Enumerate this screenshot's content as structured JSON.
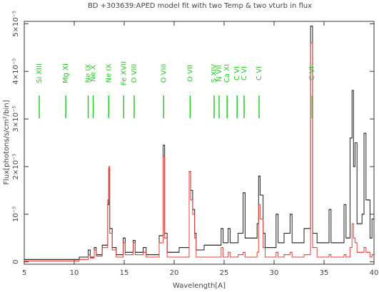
{
  "chart_data": {
    "type": "step",
    "title": "BD +303639:APED model fit with  two Temp & two vturb in flux",
    "x_label": "Wavelength[A]",
    "y_label": "Flux[photons/s/cm²/bin]",
    "xlim": [
      5,
      40
    ],
    "xticks": [
      5,
      10,
      15,
      20,
      25,
      30,
      35,
      40
    ],
    "ylim": [
      -5e-07,
      5.05e-05
    ],
    "yticks": [
      0,
      {
        "value": 1e-05,
        "label": "10⁻⁵"
      },
      {
        "value": 2e-05,
        "label": "2×10⁻⁵"
      },
      {
        "value": 3e-05,
        "label": "3×10⁻⁵"
      },
      {
        "value": 4e-05,
        "label": "4×10⁻⁵"
      },
      {
        "value": 5e-05,
        "label": "5×10⁻⁵"
      }
    ],
    "x": [
      5,
      10.5,
      11.4,
      11.6,
      12.0,
      12.2,
      12.8,
      13.35,
      13.45,
      13.55,
      13.8,
      14.2,
      14.9,
      15.1,
      15.9,
      16.1,
      16.9,
      17.2,
      18.5,
      18.9,
      19.05,
      19.3,
      20.5,
      21.5,
      21.65,
      21.85,
      22.05,
      22.2,
      23,
      24.7,
      24.9,
      25.4,
      25.6,
      26.4,
      26.9,
      27.1,
      28.3,
      28.45,
      28.6,
      28.9,
      29.1,
      30.2,
      30.4,
      31,
      31.6,
      31.8,
      33,
      33.65,
      33.85,
      34.3,
      35.5,
      35.7,
      37,
      37.2,
      37.6,
      37.8,
      37.95,
      38.1,
      38.3,
      38.8,
      39.0,
      39.2,
      39.6,
      39.8
    ],
    "series": [
      {
        "color": "#202020",
        "values": [
          5e-07,
          1e-06,
          2.5e-06,
          1e-06,
          3e-06,
          1.5e-06,
          3.5e-06,
          1.2e-05,
          1.95e-05,
          7e-06,
          3e-06,
          1.5e-06,
          5e-06,
          2e-06,
          4.5e-06,
          2e-06,
          3e-06,
          1.5e-06,
          5.5e-06,
          2.45e-05,
          6e-06,
          2e-06,
          3e-06,
          1.9e-05,
          1.5e-05,
          1.1e-05,
          6e-06,
          2.5e-06,
          3.5e-06,
          7e-06,
          4e-06,
          7e-06,
          4e-06,
          6e-06,
          1.45e-05,
          5e-06,
          8e-06,
          1.8e-05,
          1.4e-05,
          6e-06,
          3e-06,
          1e-05,
          4e-06,
          6e-06,
          1e-05,
          4e-06,
          7e-06,
          4.95e-05,
          6e-06,
          4e-06,
          1.1e-05,
          4e-06,
          1.2e-05,
          5e-06,
          2.6e-05,
          3.6e-05,
          2e-05,
          2.5e-05,
          8e-06,
          1e-05,
          2.7e-05,
          1.3e-05,
          5e-06,
          9e-06
        ]
      },
      {
        "color": "#e8403a",
        "values": [
          2e-07,
          5e-07,
          1.5e-06,
          8e-07,
          2.5e-06,
          1.2e-06,
          3e-06,
          1.3e-05,
          2e-05,
          6e-06,
          2.5e-06,
          1e-06,
          4e-06,
          1.5e-06,
          4e-06,
          1.5e-06,
          2e-06,
          1e-06,
          4e-06,
          2.2e-05,
          5e-06,
          1e-06,
          1e-06,
          1.9e-05,
          1.3e-05,
          1e-05,
          5e-06,
          1e-06,
          1e-06,
          3e-06,
          1e-06,
          2e-06,
          1e-06,
          1.5e-06,
          2e-06,
          1e-06,
          2e-06,
          1.2e-05,
          9e-06,
          3e-06,
          1e-06,
          2e-06,
          1e-06,
          1.5e-06,
          2e-06,
          1e-06,
          1.5e-06,
          4.6e-05,
          3e-06,
          1e-06,
          1.5e-06,
          1e-06,
          1.5e-06,
          1e-06,
          3e-06,
          8e-06,
          5e-06,
          4e-06,
          2e-06,
          2e-06,
          3e-06,
          2e-06,
          1e-06,
          1.5e-06
        ]
      }
    ],
    "line_color": "#22cc22",
    "lines": [
      {
        "label": "Si XIII",
        "wavelength": 6.5
      },
      {
        "label": "Mg XI",
        "wavelength": 9.15
      },
      {
        "label": "Ne IX",
        "wavelength": 11.4
      },
      {
        "label": "Ne X",
        "wavelength": 11.9
      },
      {
        "label": "Ne IX",
        "wavelength": 13.45
      },
      {
        "label": "Fe XVII",
        "wavelength": 14.95
      },
      {
        "label": "O VIII",
        "wavelength": 16.0
      },
      {
        "label": "O VIII",
        "wavelength": 18.95
      },
      {
        "label": "O VII",
        "wavelength": 21.6
      },
      {
        "label": "S XIV",
        "wavelength": 24.0
      },
      {
        "label": "N VII",
        "wavelength": 24.5
      },
      {
        "label": "Ca XI",
        "wavelength": 25.3
      },
      {
        "label": "C VI",
        "wavelength": 26.3
      },
      {
        "label": "C VI",
        "wavelength": 27.0
      },
      {
        "label": "C VI",
        "wavelength": 28.5
      },
      {
        "label": "C VI",
        "wavelength": 33.8
      }
    ]
  }
}
